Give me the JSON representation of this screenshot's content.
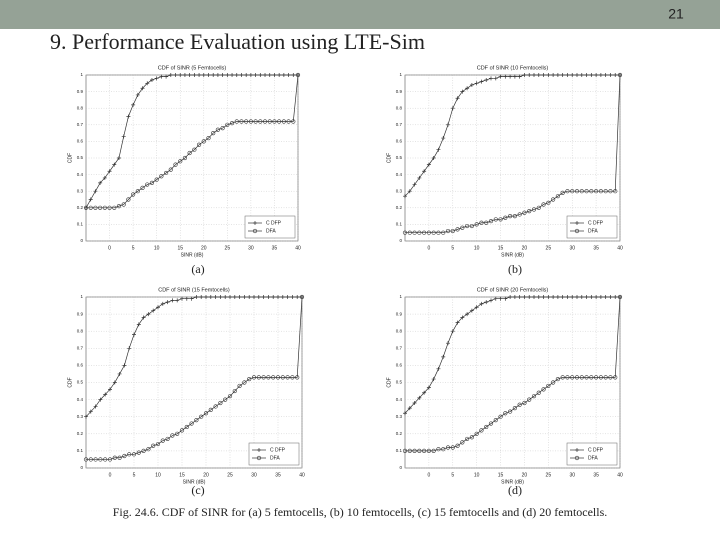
{
  "slide": {
    "number": "21",
    "title": "9. Performance Evaluation using LTE-Sim"
  },
  "captions": [
    "(a)",
    "(b)",
    "(c)",
    "(d)"
  ],
  "figure_caption": "Fig. 24.6. CDF of SINR for (a) 5 femtocells, (b) 10 femtocells, (c) 15 femtocells and (d) 20 femtocells.",
  "chart_data": [
    {
      "type": "line",
      "title": "CDF of SINR (5 Femtocells)",
      "x_label": "SINR (dB)",
      "y_label": "CDF",
      "x": [
        -5,
        -4,
        -3,
        -2,
        -1,
        0,
        1,
        2,
        3,
        4,
        5,
        6,
        7,
        8,
        9,
        10,
        11,
        12,
        13,
        14,
        15,
        16,
        17,
        18,
        19,
        20,
        21,
        22,
        23,
        24,
        25,
        26,
        27,
        28,
        29,
        30,
        31,
        32,
        33,
        34,
        35,
        36,
        37,
        38,
        39,
        40
      ],
      "series": [
        {
          "name": "C DFP",
          "color": "#333333",
          "marker": "plus",
          "values": [
            0.2,
            0.25,
            0.3,
            0.35,
            0.38,
            0.42,
            0.46,
            0.5,
            0.63,
            0.75,
            0.82,
            0.88,
            0.92,
            0.95,
            0.97,
            0.98,
            0.99,
            0.99,
            1,
            1,
            1,
            1,
            1,
            1,
            1,
            1,
            1,
            1,
            1,
            1,
            1,
            1,
            1,
            1,
            1,
            1,
            1,
            1,
            1,
            1,
            1,
            1,
            1,
            1,
            1,
            1
          ]
        },
        {
          "name": "DFA",
          "color": "#333333",
          "marker": "circle",
          "values": [
            0.2,
            0.2,
            0.2,
            0.2,
            0.2,
            0.2,
            0.2,
            0.21,
            0.22,
            0.25,
            0.28,
            0.3,
            0.32,
            0.34,
            0.35,
            0.37,
            0.39,
            0.41,
            0.43,
            0.46,
            0.48,
            0.5,
            0.53,
            0.55,
            0.58,
            0.6,
            0.62,
            0.65,
            0.67,
            0.68,
            0.7,
            0.71,
            0.72,
            0.72,
            0.72,
            0.72,
            0.72,
            0.72,
            0.72,
            0.72,
            0.72,
            0.72,
            0.72,
            0.72,
            0.72,
            1
          ]
        }
      ],
      "xlim": [
        -5,
        40
      ],
      "xticks": [
        0,
        5,
        10,
        15,
        20,
        25,
        30,
        35,
        40
      ],
      "ylim": [
        0,
        1
      ],
      "yticks": [
        0,
        0.1,
        0.2,
        0.3,
        0.4,
        0.5,
        0.6,
        0.7,
        0.8,
        0.9,
        1
      ],
      "grid": true,
      "legend": "lower right"
    },
    {
      "type": "line",
      "title": "CDF of SINR (10 Femtocells)",
      "x_label": "SINR (dB)",
      "y_label": "CDF",
      "x": [
        -5,
        -4,
        -3,
        -2,
        -1,
        0,
        1,
        2,
        3,
        4,
        5,
        6,
        7,
        8,
        9,
        10,
        11,
        12,
        13,
        14,
        15,
        16,
        17,
        18,
        19,
        20,
        21,
        22,
        23,
        24,
        25,
        26,
        27,
        28,
        29,
        30,
        31,
        32,
        33,
        34,
        35,
        36,
        37,
        38,
        39,
        40
      ],
      "series": [
        {
          "name": "C DFP",
          "color": "#333333",
          "marker": "plus",
          "values": [
            0.27,
            0.3,
            0.34,
            0.38,
            0.42,
            0.46,
            0.5,
            0.55,
            0.62,
            0.7,
            0.8,
            0.86,
            0.9,
            0.92,
            0.94,
            0.95,
            0.96,
            0.97,
            0.98,
            0.98,
            0.99,
            0.99,
            0.99,
            0.99,
            0.99,
            1,
            1,
            1,
            1,
            1,
            1,
            1,
            1,
            1,
            1,
            1,
            1,
            1,
            1,
            1,
            1,
            1,
            1,
            1,
            1,
            1
          ]
        },
        {
          "name": "DFA",
          "color": "#333333",
          "marker": "circle",
          "values": [
            0.05,
            0.05,
            0.05,
            0.05,
            0.05,
            0.05,
            0.05,
            0.05,
            0.05,
            0.06,
            0.06,
            0.07,
            0.08,
            0.09,
            0.09,
            0.1,
            0.11,
            0.11,
            0.12,
            0.13,
            0.13,
            0.14,
            0.15,
            0.15,
            0.16,
            0.17,
            0.18,
            0.19,
            0.2,
            0.22,
            0.23,
            0.25,
            0.27,
            0.29,
            0.3,
            0.3,
            0.3,
            0.3,
            0.3,
            0.3,
            0.3,
            0.3,
            0.3,
            0.3,
            0.3,
            1
          ]
        }
      ],
      "xlim": [
        -5,
        40
      ],
      "xticks": [
        0,
        5,
        10,
        15,
        20,
        25,
        30,
        35,
        40
      ],
      "ylim": [
        0,
        1
      ],
      "yticks": [
        0,
        0.1,
        0.2,
        0.3,
        0.4,
        0.5,
        0.6,
        0.7,
        0.8,
        0.9,
        1
      ],
      "grid": true,
      "legend": "lower right"
    },
    {
      "type": "line",
      "title": "CDF of SINR (15 Femtocells)",
      "x_label": "SINR (dB)",
      "y_label": "CDF",
      "x": [
        -5,
        -4,
        -3,
        -2,
        -1,
        0,
        1,
        2,
        3,
        4,
        5,
        6,
        7,
        8,
        9,
        10,
        11,
        12,
        13,
        14,
        15,
        16,
        17,
        18,
        19,
        20,
        21,
        22,
        23,
        24,
        25,
        26,
        27,
        28,
        29,
        30,
        31,
        32,
        33,
        34,
        35,
        36,
        37,
        38,
        39,
        40
      ],
      "series": [
        {
          "name": "C DFP",
          "color": "#333333",
          "marker": "plus",
          "values": [
            0.3,
            0.33,
            0.36,
            0.4,
            0.43,
            0.46,
            0.5,
            0.55,
            0.6,
            0.7,
            0.78,
            0.84,
            0.88,
            0.9,
            0.92,
            0.94,
            0.96,
            0.97,
            0.98,
            0.98,
            0.99,
            0.99,
            0.99,
            1,
            1,
            1,
            1,
            1,
            1,
            1,
            1,
            1,
            1,
            1,
            1,
            1,
            1,
            1,
            1,
            1,
            1,
            1,
            1,
            1,
            1,
            1
          ]
        },
        {
          "name": "DFA",
          "color": "#333333",
          "marker": "circle",
          "values": [
            0.05,
            0.05,
            0.05,
            0.05,
            0.05,
            0.05,
            0.06,
            0.06,
            0.07,
            0.08,
            0.08,
            0.09,
            0.1,
            0.11,
            0.13,
            0.14,
            0.16,
            0.17,
            0.19,
            0.2,
            0.22,
            0.24,
            0.26,
            0.28,
            0.3,
            0.32,
            0.34,
            0.36,
            0.38,
            0.4,
            0.42,
            0.45,
            0.48,
            0.5,
            0.52,
            0.53,
            0.53,
            0.53,
            0.53,
            0.53,
            0.53,
            0.53,
            0.53,
            0.53,
            0.53,
            1
          ]
        }
      ],
      "xlim": [
        -5,
        40
      ],
      "xticks": [
        0,
        5,
        10,
        15,
        20,
        25,
        30,
        35,
        40
      ],
      "ylim": [
        0,
        1
      ],
      "yticks": [
        0,
        0.1,
        0.2,
        0.3,
        0.4,
        0.5,
        0.6,
        0.7,
        0.8,
        0.9,
        1
      ],
      "grid": true,
      "legend": "lower right"
    },
    {
      "type": "line",
      "title": "CDF of SINR (20 Femtocells)",
      "x_label": "SINR (dB)",
      "y_label": "CDF",
      "x": [
        -5,
        -4,
        -3,
        -2,
        -1,
        0,
        1,
        2,
        3,
        4,
        5,
        6,
        7,
        8,
        9,
        10,
        11,
        12,
        13,
        14,
        15,
        16,
        17,
        18,
        19,
        20,
        21,
        22,
        23,
        24,
        25,
        26,
        27,
        28,
        29,
        30,
        31,
        32,
        33,
        34,
        35,
        36,
        37,
        38,
        39,
        40
      ],
      "series": [
        {
          "name": "C DFP",
          "color": "#333333",
          "marker": "plus",
          "values": [
            0.32,
            0.35,
            0.38,
            0.41,
            0.44,
            0.47,
            0.52,
            0.58,
            0.65,
            0.73,
            0.8,
            0.85,
            0.88,
            0.9,
            0.92,
            0.94,
            0.96,
            0.97,
            0.98,
            0.99,
            0.99,
            0.99,
            1,
            1,
            1,
            1,
            1,
            1,
            1,
            1,
            1,
            1,
            1,
            1,
            1,
            1,
            1,
            1,
            1,
            1,
            1,
            1,
            1,
            1,
            1,
            1
          ]
        },
        {
          "name": "DFA",
          "color": "#333333",
          "marker": "circle",
          "values": [
            0.1,
            0.1,
            0.1,
            0.1,
            0.1,
            0.1,
            0.1,
            0.11,
            0.11,
            0.12,
            0.12,
            0.13,
            0.15,
            0.17,
            0.18,
            0.2,
            0.22,
            0.24,
            0.26,
            0.28,
            0.3,
            0.32,
            0.33,
            0.35,
            0.37,
            0.38,
            0.4,
            0.42,
            0.44,
            0.46,
            0.48,
            0.5,
            0.52,
            0.53,
            0.53,
            0.53,
            0.53,
            0.53,
            0.53,
            0.53,
            0.53,
            0.53,
            0.53,
            0.53,
            0.53,
            1
          ]
        }
      ],
      "xlim": [
        -5,
        40
      ],
      "xticks": [
        0,
        5,
        10,
        15,
        20,
        25,
        30,
        35,
        40
      ],
      "ylim": [
        0,
        1
      ],
      "yticks": [
        0,
        0.1,
        0.2,
        0.3,
        0.4,
        0.5,
        0.6,
        0.7,
        0.8,
        0.9,
        1
      ],
      "grid": true,
      "legend": "lower right"
    }
  ]
}
